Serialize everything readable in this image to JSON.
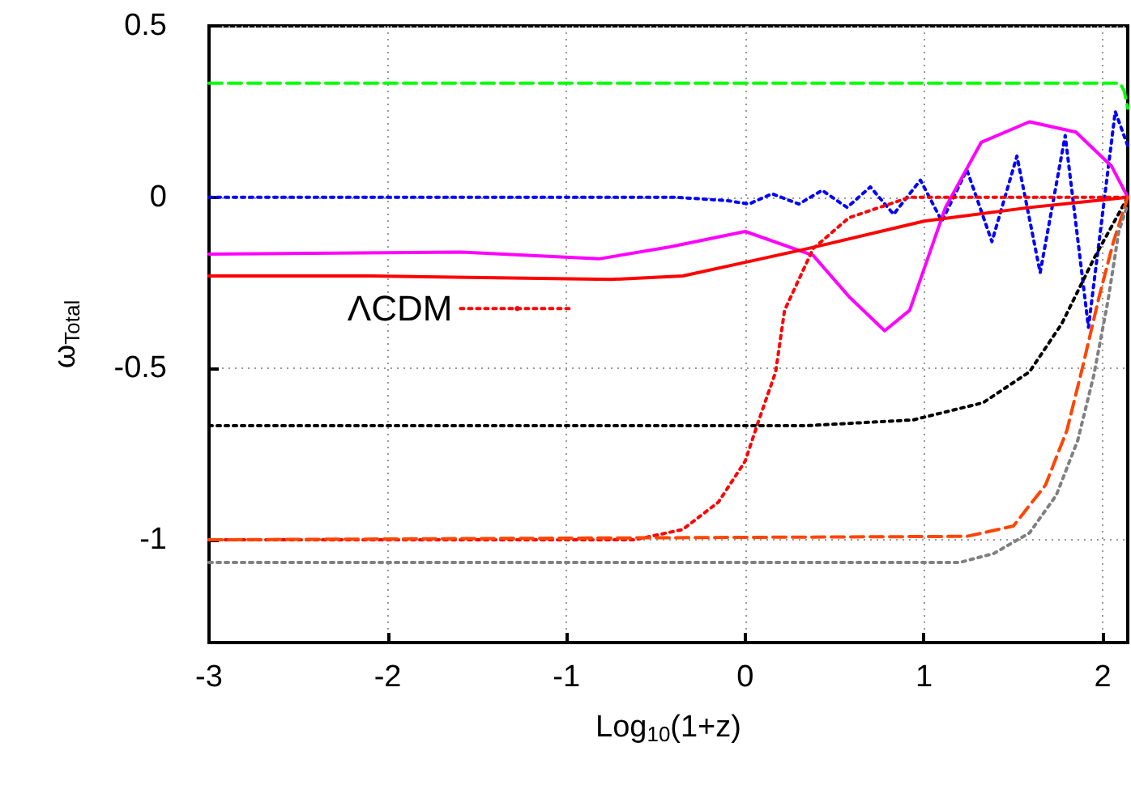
{
  "chart_data": {
    "type": "line",
    "xlabel": "Log$_{10}$(1+z)",
    "ylabel": "ω$_{Total}$",
    "xlim": [
      -3,
      2.14
    ],
    "ylim": [
      -1.3,
      0.5
    ],
    "xticks": [
      -3,
      -2,
      -1,
      0,
      1,
      2
    ],
    "yticks": [
      -1,
      -0.5,
      0,
      0.5
    ],
    "grid": true,
    "legend": "center",
    "marker": "none",
    "series": [
      {
        "color": "#00ff00",
        "line_style": "dashed",
        "x": [
          -3,
          2.08,
          2.1,
          2.12,
          2.14
        ],
        "values": [
          0.333,
          0.333,
          0.33,
          0.31,
          0.26
        ]
      },
      {
        "color": "#0000ff",
        "line_style": "dotted",
        "x": [
          -3,
          -0.4,
          -0.1,
          0.02,
          0.15,
          0.3,
          0.43,
          0.57,
          0.7,
          0.83,
          0.98,
          1.1,
          1.24,
          1.38,
          1.52,
          1.65,
          1.79,
          1.92,
          2.07,
          2.14
        ],
        "values": [
          0,
          0,
          -0.01,
          -0.02,
          0.01,
          -0.02,
          0.02,
          -0.03,
          0.03,
          -0.05,
          0.05,
          -0.07,
          0.08,
          -0.13,
          0.12,
          -0.22,
          0.18,
          -0.38,
          0.25,
          0.15
        ]
      },
      {
        "color": "#ff00ff",
        "line_style": "solid",
        "x": [
          -3,
          -1.59,
          -0.82,
          -0.42,
          0,
          0.38,
          0.58,
          0.78,
          0.92,
          1.12,
          1.32,
          1.59,
          1.85,
          2.05,
          2.14
        ],
        "values": [
          -0.166,
          -0.16,
          -0.18,
          -0.145,
          -0.1,
          -0.17,
          -0.29,
          -0.39,
          -0.33,
          -0.03,
          0.16,
          0.22,
          0.19,
          0.09,
          0
        ]
      },
      {
        "color": "#ff0000",
        "line_style": "solid",
        "x": [
          -3,
          -2.09,
          -0.75,
          -0.35,
          0,
          0.35,
          1,
          1.59,
          2.14
        ],
        "values": [
          -0.23,
          -0.23,
          -0.24,
          -0.23,
          -0.19,
          -0.15,
          -0.07,
          -0.03,
          0
        ]
      },
      {
        "name": "ΛCDM",
        "color": "#ff0000",
        "line_style": "dotted",
        "x": [
          -3,
          -0.62,
          -0.35,
          -0.15,
          0,
          0.07,
          0.17,
          0.22,
          0.38,
          0.58,
          0.92,
          2.14
        ],
        "values": [
          -1,
          -1,
          -0.97,
          -0.89,
          -0.77,
          -0.66,
          -0.51,
          -0.33,
          -0.15,
          -0.06,
          0,
          0
        ]
      },
      {
        "color": "#000000",
        "line_style": "dotted",
        "x": [
          -3,
          0.34,
          0.94,
          1.33,
          1.59,
          1.77,
          1.95,
          2.14
        ],
        "values": [
          -0.667,
          -0.667,
          -0.65,
          -0.6,
          -0.51,
          -0.37,
          -0.18,
          0
        ]
      },
      {
        "color": "#ff4500",
        "line_style": "dashed",
        "x": [
          -3,
          1.24,
          1.5,
          1.68,
          1.8,
          1.89,
          1.98,
          2.06,
          2.14
        ],
        "values": [
          -1,
          -0.99,
          -0.96,
          -0.84,
          -0.68,
          -0.49,
          -0.29,
          -0.13,
          0
        ]
      },
      {
        "color": "#808080",
        "line_style": "dotted",
        "x": [
          -3,
          1.2,
          1.39,
          1.59,
          1.74,
          1.86,
          1.95,
          2.03,
          2.09,
          2.14
        ],
        "values": [
          -1.066,
          -1.066,
          -1.04,
          -0.98,
          -0.87,
          -0.71,
          -0.52,
          -0.3,
          -0.1,
          -0.02
        ]
      }
    ]
  }
}
